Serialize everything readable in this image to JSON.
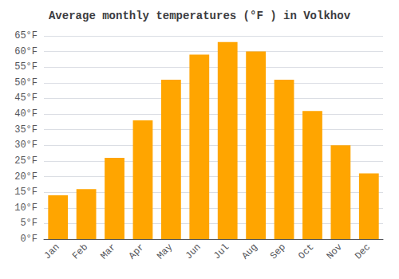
{
  "chart_data": {
    "type": "bar",
    "title": "Average monthly temperatures (°F ) in Volkhov",
    "categories": [
      "Jan",
      "Feb",
      "Mar",
      "Apr",
      "May",
      "Jun",
      "Jul",
      "Aug",
      "Sep",
      "Oct",
      "Nov",
      "Dec"
    ],
    "values": [
      14,
      16,
      26,
      38,
      51,
      59,
      63,
      60,
      51,
      41,
      30,
      21
    ],
    "color": "#FFA500",
    "ylim": [
      0,
      65
    ],
    "yticks": [
      {
        "value": 0,
        "label": "0°F"
      },
      {
        "value": 5,
        "label": "5°F"
      },
      {
        "value": 10,
        "label": "10°F"
      },
      {
        "value": 15,
        "label": "15°F"
      },
      {
        "value": 20,
        "label": "20°F"
      },
      {
        "value": 25,
        "label": "25°F"
      },
      {
        "value": 30,
        "label": "30°F"
      },
      {
        "value": 35,
        "label": "35°F"
      },
      {
        "value": 40,
        "label": "40°F"
      },
      {
        "value": 45,
        "label": "45°F"
      },
      {
        "value": 50,
        "label": "50°F"
      },
      {
        "value": 55,
        "label": "55°F"
      },
      {
        "value": 60,
        "label": "60°F"
      },
      {
        "value": 65,
        "label": "65°F"
      }
    ],
    "grid": true
  }
}
